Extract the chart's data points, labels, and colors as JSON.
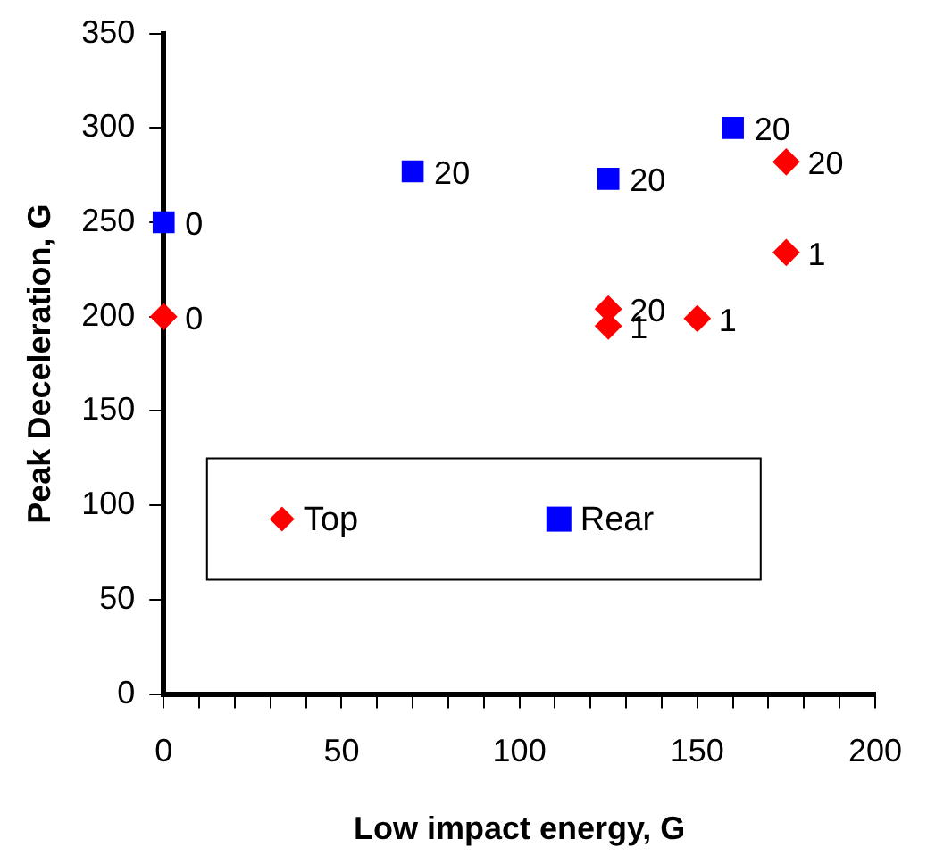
{
  "chart_data": {
    "type": "scatter",
    "xlabel": "Low impact energy, G",
    "ylabel": "Peak Deceleration, G",
    "xlim": [
      0,
      200
    ],
    "xticks": [
      0,
      {
        "value": 10,
        "label": null
      },
      {
        "value": 20,
        "label": null
      },
      {
        "value": 30,
        "label": null
      },
      {
        "value": 40,
        "label": null
      },
      50,
      {
        "value": 60,
        "label": null
      },
      {
        "value": 70,
        "label": null
      },
      {
        "value": 80,
        "label": null
      },
      {
        "value": 90,
        "label": null
      },
      100,
      {
        "value": 110,
        "label": null
      },
      {
        "value": 120,
        "label": null
      },
      {
        "value": 130,
        "label": null
      },
      {
        "value": 140,
        "label": null
      },
      150,
      {
        "value": 160,
        "label": null
      },
      {
        "value": 170,
        "label": null
      },
      {
        "value": 180,
        "label": null
      },
      {
        "value": 190,
        "label": null
      },
      200
    ],
    "ylim": [
      0,
      350
    ],
    "yticks": [
      0,
      50,
      100,
      150,
      200,
      250,
      300,
      350
    ],
    "grid": false,
    "legend": "bottom",
    "series": [
      {
        "name": "Top",
        "color": "#ff0000",
        "marker": "diamond",
        "x": [
          0,
          125,
          125,
          150,
          175,
          175
        ],
        "values": [
          200,
          204,
          195,
          199,
          234,
          282
        ]
      },
      {
        "name": "Rear",
        "color": "#0000ff",
        "marker": "square",
        "x": [
          0,
          70,
          125,
          160
        ],
        "values": [
          250,
          277,
          273,
          300
        ]
      }
    ],
    "annotations": [
      {
        "text": "0",
        "x": 0,
        "y": 200
      },
      {
        "text": "20",
        "x": 125,
        "y": 204
      },
      {
        "text": "1",
        "x": 125,
        "y": 195
      },
      {
        "text": "1",
        "x": 150,
        "y": 199
      },
      {
        "text": "1",
        "x": 175,
        "y": 234
      },
      {
        "text": "20",
        "x": 175,
        "y": 282
      },
      {
        "text": "0",
        "x": 0,
        "y": 250
      },
      {
        "text": "20",
        "x": 70,
        "y": 277
      },
      {
        "text": "20",
        "x": 125,
        "y": 273
      },
      {
        "text": "20",
        "x": 160,
        "y": 300
      }
    ]
  }
}
